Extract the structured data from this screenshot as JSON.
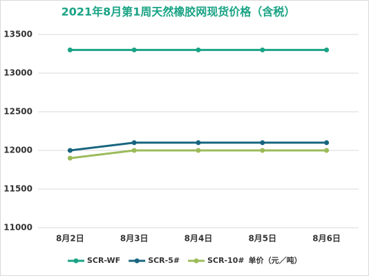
{
  "chart_data": {
    "type": "line",
    "title": "2021年8月第1周天然橡胶网现货价格（含税）",
    "categories": [
      "8月2日",
      "8月3日",
      "8月4日",
      "8月5日",
      "8月6日"
    ],
    "series": [
      {
        "name": "SCR-WF",
        "color": "#1aa385",
        "values": [
          13300,
          13300,
          13300,
          13300,
          13300
        ]
      },
      {
        "name": "SCR-5#",
        "color": "#17657e",
        "values": [
          12000,
          12100,
          12100,
          12100,
          12100
        ]
      },
      {
        "name": "SCR-10#",
        "color": "#9bbb59",
        "values": [
          11900,
          12000,
          12000,
          12000,
          12000
        ]
      }
    ],
    "legend_note": "单价（元／吨）",
    "ylim": [
      11000,
      13500
    ],
    "yticks": [
      11000,
      11500,
      12000,
      12500,
      13000,
      13500
    ],
    "grid": true,
    "legend": "bottom"
  }
}
